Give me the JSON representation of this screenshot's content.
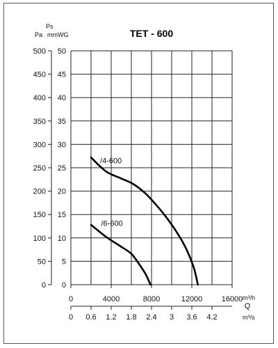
{
  "chart_data": {
    "type": "line",
    "title": "TET - 600",
    "y_axis_labels": {
      "ps_label": "Ps",
      "pa_unit": "Pa",
      "mmwg_unit": "mmWG"
    },
    "y_pa_ticks": [
      "0",
      "50",
      "100",
      "150",
      "200",
      "250",
      "300",
      "350",
      "400",
      "450",
      "500"
    ],
    "y_mmwg_ticks": [
      "0",
      "5",
      "10",
      "15",
      "20",
      "25",
      "30",
      "35",
      "40",
      "45",
      "50"
    ],
    "ylim_mmwg": [
      0,
      50
    ],
    "x_m3h_ticks": [
      "0",
      "4000",
      "8000",
      "12000",
      "16000"
    ],
    "x_m3h_unit": "m³/h",
    "x_q_label": "Q",
    "x_m3s_ticks": [
      "0",
      "0.6",
      "1.2",
      "1.8",
      "2.4",
      "3",
      "3.6",
      "4.2"
    ],
    "x_m3s_unit": "m³/s",
    "xlim_m3h": [
      0,
      16000
    ],
    "grid": true,
    "series": [
      {
        "name": "/4-600",
        "label_at": {
          "x": 2900,
          "y": 26
        },
        "points": [
          [
            2000,
            27.2
          ],
          [
            3500,
            24.2
          ],
          [
            5000,
            22.7
          ],
          [
            6200,
            21.5
          ],
          [
            7400,
            19.5
          ],
          [
            8400,
            17.2
          ],
          [
            9400,
            14.6
          ],
          [
            10600,
            10.9
          ],
          [
            11500,
            7.4
          ],
          [
            12200,
            3.6
          ],
          [
            12600,
            0
          ]
        ]
      },
      {
        "name": "/6-600",
        "label_at": {
          "x": 3000,
          "y": 12.6
        },
        "points": [
          [
            2000,
            12.8
          ],
          [
            3500,
            10.2
          ],
          [
            5000,
            8.1
          ],
          [
            6000,
            6.6
          ],
          [
            6800,
            4.3
          ],
          [
            7400,
            2.3
          ],
          [
            7900,
            0
          ]
        ]
      }
    ]
  }
}
